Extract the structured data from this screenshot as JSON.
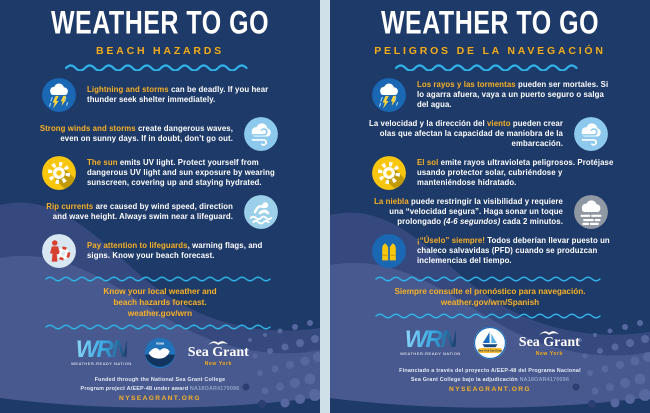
{
  "colors": {
    "navy_background": "#1E3A68",
    "wave_dark": "#36497E",
    "wave_light": "#48598F",
    "gold_accent": "#F5AC15",
    "divider_blue": "#2FB3E8",
    "body_text": "#FFFFFF",
    "gutter": "#CFE0E9",
    "award_muted": "#8EA3C6"
  },
  "posters": [
    {
      "lang": "en",
      "title": "WEATHER TO GO",
      "subtitle": "BEACH HAZARDS",
      "items": [
        {
          "icon": "lightning-storm-icon",
          "side": "left",
          "segments": [
            {
              "t": "Lightning and storms",
              "g": true
            },
            {
              "t": " can be deadly. If you hear thunder seek shelter immediately."
            }
          ]
        },
        {
          "icon": "wind-icon",
          "side": "right",
          "segments": [
            {
              "t": "Strong winds and storms",
              "g": true
            },
            {
              "t": " create dangerous waves, even on sunny days. If in doubt, don’t go out."
            }
          ]
        },
        {
          "icon": "sun-icon",
          "side": "left",
          "segments": [
            {
              "t": "The sun",
              "g": true
            },
            {
              "t": " emits UV light. Protect yourself from dangerous UV light and sun exposure by wearing sunscreen, covering up and staying hydrated."
            }
          ]
        },
        {
          "icon": "rip-current-swimmer-icon",
          "side": "right",
          "segments": [
            {
              "t": "Rip currents",
              "g": true
            },
            {
              "t": " are caused by wind speed, direction and wave height. Always swim near a lifeguard."
            }
          ]
        },
        {
          "icon": "lifeguard-icon",
          "side": "left",
          "segments": [
            {
              "t": "Pay attention to lifeguards",
              "g": true
            },
            {
              "t": ", warning flags, and signs. Know your beach forecast."
            }
          ]
        }
      ],
      "callout_lines": [
        "Know your local weather and",
        "beach hazards forecast.",
        "weather.gov/wrn"
      ],
      "logos": {
        "wrn": "WRN",
        "wrn_caption": "WEATHER-READY NATION",
        "noaa": "noaa",
        "seagrant_line1": "Sea Grant",
        "seagrant_line2": "New York"
      },
      "funding_line1": "Funded through the National Sea Grant College",
      "funding_line2": "Program project A/EEP-48 under award",
      "award": "NA18OAR4170096",
      "website": "NYSEAGRANT.ORG"
    },
    {
      "lang": "es",
      "title": "WEATHER TO GO",
      "subtitle": "PELIGROS DE LA NAVEGACIÓN",
      "items": [
        {
          "icon": "lightning-storm-icon",
          "side": "left",
          "segments": [
            {
              "t": "Los rayos y las tormentas",
              "g": true
            },
            {
              "t": " pueden ser mortales. Si lo agarra afuera, vaya a un puerto seguro o salga del agua."
            }
          ]
        },
        {
          "icon": "wind-icon",
          "side": "right",
          "segments": [
            {
              "t": "La velocidad y la dirección del "
            },
            {
              "t": "viento",
              "g": true
            },
            {
              "t": " pueden crear olas que afectan la capacidad de maniobra de la embarcación."
            }
          ]
        },
        {
          "icon": "sun-icon",
          "side": "left",
          "segments": [
            {
              "t": "El sol",
              "g": true
            },
            {
              "t": " emite rayos ultravioleta peligrosos. Protéjase usando protector solar, cubriéndose y manteniéndose hidratado."
            }
          ]
        },
        {
          "icon": "fog-icon",
          "side": "right",
          "segments": [
            {
              "t": "La niebla",
              "g": true
            },
            {
              "t": " puede restringir la visibilidad y requiere una “velocidad segura”. Haga sonar un toque prolongado "
            },
            {
              "t": "(4-6 segundos)",
              "i": true
            },
            {
              "t": " cada 2 minutos."
            }
          ]
        },
        {
          "icon": "life-vest-icon",
          "side": "left",
          "segments": [
            {
              "t": "¡“Úselo” siempre!",
              "g": true
            },
            {
              "t": " Todos deberían llevar puesto un chaleco salvavidas (PFD) cuando se produzcan inclemencias del tiempo."
            }
          ]
        }
      ],
      "callout_lines": [
        "Siempre consulte el pronóstico para navegación.",
        "weather.gov/wrn/Spanish"
      ],
      "logos": {
        "wrn": "WRN",
        "wrn_caption": "WEATHER-READY NATION",
        "badge_banner": "New York Sea Grant",
        "seagrant_line1": "Sea Grant",
        "seagrant_line2": "New York"
      },
      "funding_line1": "Financiado a través del proyecto A/EEP-48 del Programa Nacional",
      "funding_line2": "Sea Grant College bajo la adjudicación",
      "award": "NA18OAR4170096",
      "website": "NYSEAGRANT.ORG"
    }
  ]
}
